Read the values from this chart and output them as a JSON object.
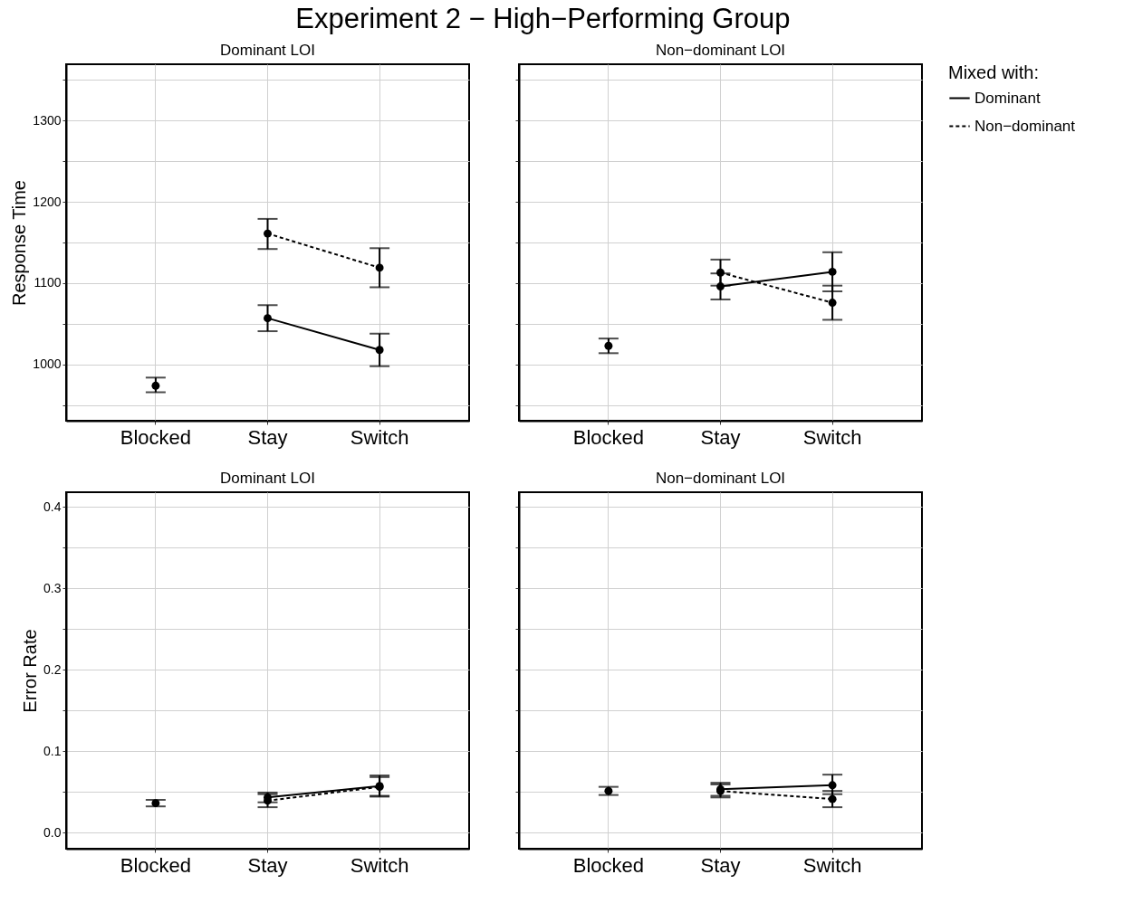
{
  "chart_data": [
    {
      "type": "line",
      "title": "Dominant LOI",
      "annotations": [
        "Experiment 2 − High−Performing Group"
      ],
      "ylabel": "Response Time",
      "legend_title": "Mixed with:",
      "categories": [
        "Blocked",
        "Stay",
        "Switch"
      ],
      "ylim": [
        931,
        1369
      ],
      "yticks": [
        {
          "value": 950,
          "label": null
        },
        1000,
        {
          "value": 1050,
          "label": null
        },
        1100,
        {
          "value": 1150,
          "label": null
        },
        1200,
        {
          "value": 1250,
          "label": null
        },
        1300,
        {
          "value": 1350,
          "label": null
        }
      ],
      "grid": true,
      "marker": "circle",
      "legend": "right",
      "series": [
        {
          "name": "Dominant",
          "color": "#000000",
          "line_style": "solid",
          "values": [
            null,
            1057,
            1018
          ],
          "errors": [
            null,
            [
              1041,
              1073
            ],
            [
              998,
              1038
            ]
          ]
        },
        {
          "name": "Non−dominant",
          "color": "#000000",
          "line_style": "dashed",
          "values": [
            null,
            1161,
            1119
          ],
          "errors": [
            null,
            [
              1142,
              1179
            ],
            [
              1095,
              1143
            ]
          ]
        },
        {
          "type": "scatter",
          "color": "#000000",
          "values": [
            974,
            null,
            null
          ],
          "errors": [
            [
              966,
              984
            ],
            null,
            null
          ]
        }
      ]
    },
    {
      "type": "line",
      "title": "Non−dominant LOI",
      "categories": [
        "Blocked",
        "Stay",
        "Switch"
      ],
      "ylim": [
        931,
        1369
      ],
      "yticks": [
        {
          "value": 950,
          "label": null
        },
        1000,
        {
          "value": 1050,
          "label": null
        },
        1100,
        {
          "value": 1150,
          "label": null
        },
        1200,
        {
          "value": 1250,
          "label": null
        },
        1300,
        {
          "value": 1350,
          "label": null
        }
      ],
      "grid": true,
      "marker": "circle",
      "legend": "right",
      "tick_labels": "x",
      "series": [
        {
          "name": "Dominant",
          "color": "#000000",
          "line_style": "solid",
          "values": [
            null,
            1096,
            1114
          ],
          "errors": [
            null,
            [
              1080,
              1112
            ],
            [
              1090,
              1138
            ]
          ]
        },
        {
          "name": "Non−dominant",
          "color": "#000000",
          "line_style": "dashed",
          "values": [
            null,
            1113,
            1076
          ],
          "errors": [
            null,
            [
              1097,
              1129
            ],
            [
              1055,
              1097
            ]
          ]
        },
        {
          "type": "scatter",
          "color": "#000000",
          "values": [
            1023,
            null,
            null
          ],
          "errors": [
            [
              1014,
              1032
            ],
            null,
            null
          ]
        }
      ]
    },
    {
      "type": "line",
      "title": "Dominant LOI",
      "ylabel": "Error Rate",
      "categories": [
        "Blocked",
        "Stay",
        "Switch"
      ],
      "ylim": [
        -0.02,
        0.418
      ],
      "yticks": [
        {
          "value": 0,
          "label": "0.0"
        },
        {
          "value": 0.05,
          "label": null
        },
        0.1,
        {
          "value": 0.15,
          "label": null
        },
        0.2,
        {
          "value": 0.25,
          "label": null
        },
        0.3,
        {
          "value": 0.35,
          "label": null
        },
        0.4
      ],
      "grid": true,
      "marker": "circle",
      "legend": "right",
      "series": [
        {
          "name": "Dominant",
          "color": "#000000",
          "line_style": "solid",
          "values": [
            null,
            0.043,
            0.057
          ],
          "errors": [
            null,
            [
              0.037,
              0.049
            ],
            [
              0.045,
              0.07
            ]
          ]
        },
        {
          "name": "Non−dominant",
          "color": "#000000",
          "line_style": "dashed",
          "values": [
            null,
            0.039,
            0.056
          ],
          "errors": [
            null,
            [
              0.031,
              0.047
            ],
            [
              0.044,
              0.068
            ]
          ]
        },
        {
          "type": "scatter",
          "color": "#000000",
          "values": [
            0.036,
            null,
            null
          ],
          "errors": [
            [
              0.032,
              0.04
            ],
            null,
            null
          ]
        }
      ]
    },
    {
      "type": "line",
      "title": "Non−dominant LOI",
      "categories": [
        "Blocked",
        "Stay",
        "Switch"
      ],
      "ylim": [
        -0.02,
        0.418
      ],
      "yticks": [
        0,
        {
          "value": 0.05,
          "label": null
        },
        0.1,
        {
          "value": 0.15,
          "label": null
        },
        0.2,
        {
          "value": 0.25,
          "label": null
        },
        0.3,
        {
          "value": 0.35,
          "label": null
        },
        0.4
      ],
      "grid": true,
      "marker": "circle",
      "legend": "right",
      "tick_labels": "x",
      "series": [
        {
          "name": "Dominant",
          "color": "#000000",
          "line_style": "solid",
          "values": [
            null,
            0.053,
            0.058
          ],
          "errors": [
            null,
            [
              0.045,
              0.061
            ],
            [
              0.047,
              0.071
            ]
          ]
        },
        {
          "name": "Non−dominant",
          "color": "#000000",
          "line_style": "dashed",
          "values": [
            null,
            0.051,
            0.041
          ],
          "errors": [
            null,
            [
              0.043,
              0.059
            ],
            [
              0.031,
              0.051
            ]
          ]
        },
        {
          "type": "scatter",
          "color": "#000000",
          "values": [
            0.051,
            null,
            null
          ],
          "errors": [
            [
              0.046,
              0.056
            ],
            null,
            null
          ]
        }
      ]
    }
  ]
}
